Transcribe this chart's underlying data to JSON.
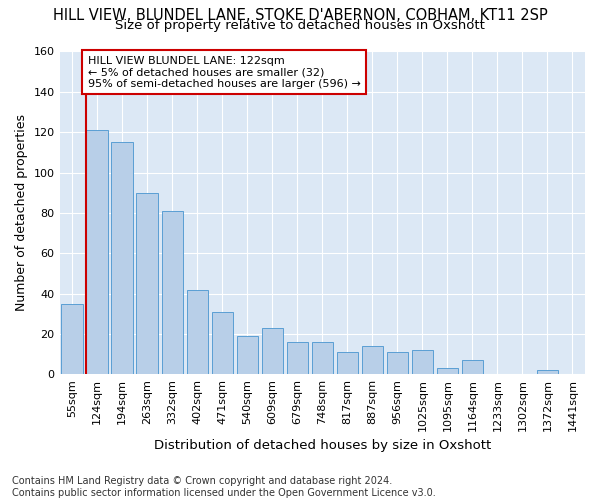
{
  "title": "HILL VIEW, BLUNDEL LANE, STOKE D'ABERNON, COBHAM, KT11 2SP",
  "subtitle": "Size of property relative to detached houses in Oxshott",
  "xlabel": "Distribution of detached houses by size in Oxshott",
  "ylabel": "Number of detached properties",
  "categories": [
    "55sqm",
    "124sqm",
    "194sqm",
    "263sqm",
    "332sqm",
    "402sqm",
    "471sqm",
    "540sqm",
    "609sqm",
    "679sqm",
    "748sqm",
    "817sqm",
    "887sqm",
    "956sqm",
    "1025sqm",
    "1095sqm",
    "1164sqm",
    "1233sqm",
    "1302sqm",
    "1372sqm",
    "1441sqm"
  ],
  "values": [
    35,
    121,
    115,
    90,
    81,
    42,
    31,
    19,
    23,
    16,
    16,
    11,
    14,
    11,
    12,
    3,
    7,
    0,
    0,
    2,
    0
  ],
  "bar_color": "#b8cfe8",
  "bar_edge_color": "#5a9fd4",
  "marker_line_color": "#cc0000",
  "annotation_text": "HILL VIEW BLUNDEL LANE: 122sqm\n← 5% of detached houses are smaller (32)\n95% of semi-detached houses are larger (596) →",
  "annotation_box_color": "#ffffff",
  "annotation_box_edge_color": "#cc0000",
  "ylim": [
    0,
    160
  ],
  "yticks": [
    0,
    20,
    40,
    60,
    80,
    100,
    120,
    140,
    160
  ],
  "footer_text": "Contains HM Land Registry data © Crown copyright and database right 2024.\nContains public sector information licensed under the Open Government Licence v3.0.",
  "bg_color": "#ffffff",
  "plot_bg_color": "#dce8f5",
  "grid_color": "#ffffff",
  "title_fontsize": 10.5,
  "subtitle_fontsize": 9.5,
  "axis_label_fontsize": 9,
  "tick_fontsize": 8,
  "annotation_fontsize": 8,
  "footer_fontsize": 7
}
